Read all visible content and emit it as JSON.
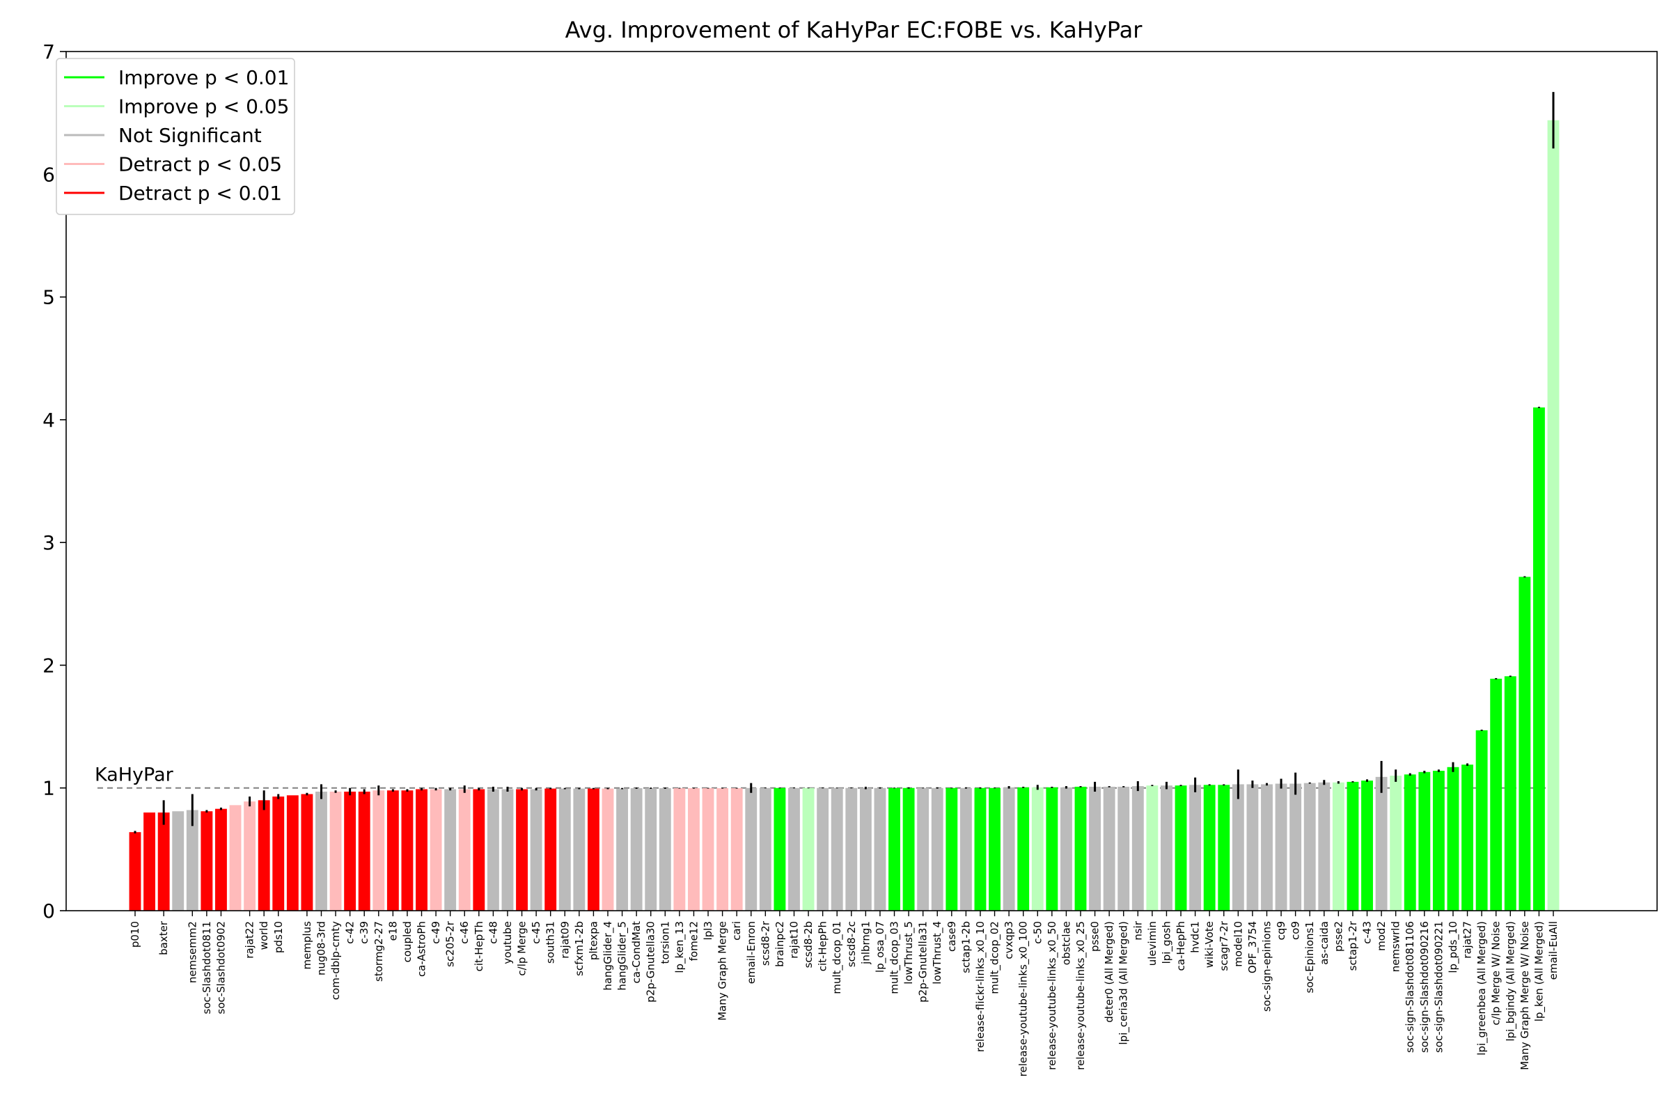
{
  "chart_data": {
    "type": "bar",
    "title": "Avg. Improvement of KaHyPar EC:FOBE vs. KaHyPar",
    "xlabel": "",
    "ylabel": "",
    "ylim": [
      0,
      7
    ],
    "yticks": [
      0,
      1,
      2,
      3,
      4,
      5,
      6,
      7
    ],
    "reference_line": {
      "value": 1,
      "label": "KaHyPar",
      "style": "dashed"
    },
    "grid": false,
    "legend_position": "top-left",
    "colors": {
      "improve_01": "#00ff00",
      "improve_05": "#bbffbb",
      "not_significant": "#bbbbbb",
      "detract_05": "#ffbbbb",
      "detract_01": "#ff0000",
      "reference": "#808080",
      "error_bar": "#000000"
    },
    "legend": [
      {
        "key": "improve_01",
        "label": "Improve p < 0.01"
      },
      {
        "key": "improve_05",
        "label": "Improve p < 0.05"
      },
      {
        "key": "not_significant",
        "label": "Not Significant"
      },
      {
        "key": "detract_05",
        "label": "Detract p < 0.05"
      },
      {
        "key": "detract_01",
        "label": "Detract p < 0.01"
      }
    ],
    "bars": [
      {
        "category": "p010",
        "value": 0.64,
        "err": 0.01,
        "significance": "detract_01"
      },
      {
        "category": "",
        "value": 0.8,
        "err": 0.0,
        "significance": "detract_01"
      },
      {
        "category": "baxter",
        "value": 0.8,
        "err": 0.1,
        "significance": "detract_01"
      },
      {
        "category": "",
        "value": 0.81,
        "err": 0.0,
        "significance": "not_significant"
      },
      {
        "category": "nemsemm2",
        "value": 0.82,
        "err": 0.13,
        "significance": "not_significant"
      },
      {
        "category": "soc-Slashdot0811",
        "value": 0.81,
        "err": 0.01,
        "significance": "detract_01"
      },
      {
        "category": "soc-Slashdot0902",
        "value": 0.83,
        "err": 0.01,
        "significance": "detract_01"
      },
      {
        "category": "",
        "value": 0.86,
        "err": 0.0,
        "significance": "detract_05"
      },
      {
        "category": "rajat22",
        "value": 0.89,
        "err": 0.04,
        "significance": "detract_05"
      },
      {
        "category": "world",
        "value": 0.9,
        "err": 0.08,
        "significance": "detract_01"
      },
      {
        "category": "pds10",
        "value": 0.93,
        "err": 0.02,
        "significance": "detract_01"
      },
      {
        "category": "",
        "value": 0.94,
        "err": 0.0,
        "significance": "detract_01"
      },
      {
        "category": "memplus",
        "value": 0.95,
        "err": 0.01,
        "significance": "detract_01"
      },
      {
        "category": "nug08-3rd",
        "value": 0.97,
        "err": 0.06,
        "significance": "not_significant"
      },
      {
        "category": "com-dblp-cmty",
        "value": 0.97,
        "err": 0.01,
        "significance": "detract_05"
      },
      {
        "category": "c-42",
        "value": 0.97,
        "err": 0.03,
        "significance": "detract_01"
      },
      {
        "category": "c-39",
        "value": 0.97,
        "err": 0.02,
        "significance": "detract_01"
      },
      {
        "category": "stormg2-27",
        "value": 0.98,
        "err": 0.04,
        "significance": "detract_05"
      },
      {
        "category": "e18",
        "value": 0.98,
        "err": 0.01,
        "significance": "detract_01"
      },
      {
        "category": "coupled",
        "value": 0.98,
        "err": 0.01,
        "significance": "detract_01"
      },
      {
        "category": "ca-AstroPh",
        "value": 0.99,
        "err": 0.01,
        "significance": "detract_01"
      },
      {
        "category": "c-49",
        "value": 0.99,
        "err": 0.01,
        "significance": "detract_05"
      },
      {
        "category": "sc205-2r",
        "value": 0.99,
        "err": 0.01,
        "significance": "not_significant"
      },
      {
        "category": "c-46",
        "value": 0.99,
        "err": 0.03,
        "significance": "detract_05"
      },
      {
        "category": "cit-HepTh",
        "value": 0.99,
        "err": 0.01,
        "significance": "detract_01"
      },
      {
        "category": "c-48",
        "value": 0.99,
        "err": 0.02,
        "significance": "not_significant"
      },
      {
        "category": "youtube",
        "value": 0.99,
        "err": 0.02,
        "significance": "not_significant"
      },
      {
        "category": "c/lp Merge",
        "value": 0.99,
        "err": 0.01,
        "significance": "detract_01"
      },
      {
        "category": "c-45",
        "value": 0.99,
        "err": 0.01,
        "significance": "not_significant"
      },
      {
        "category": "south31",
        "value": 0.995,
        "err": 0.005,
        "significance": "detract_01"
      },
      {
        "category": "rajat09",
        "value": 0.995,
        "err": 0.005,
        "significance": "not_significant"
      },
      {
        "category": "scfxm1-2b",
        "value": 0.995,
        "err": 0.005,
        "significance": "not_significant"
      },
      {
        "category": "pltexpa",
        "value": 0.995,
        "err": 0.005,
        "significance": "detract_01"
      },
      {
        "category": "hangGlider_4",
        "value": 0.995,
        "err": 0.005,
        "significance": "detract_05"
      },
      {
        "category": "hangGlider_5",
        "value": 0.995,
        "err": 0.005,
        "significance": "not_significant"
      },
      {
        "category": "ca-CondMat",
        "value": 0.998,
        "err": 0.005,
        "significance": "not_significant"
      },
      {
        "category": "p2p-Gnutella30",
        "value": 0.998,
        "err": 0.005,
        "significance": "not_significant"
      },
      {
        "category": "torsion1",
        "value": 0.998,
        "err": 0.005,
        "significance": "not_significant"
      },
      {
        "category": "lp_ken_13",
        "value": 0.998,
        "err": 0.003,
        "significance": "detract_05"
      },
      {
        "category": "fome12",
        "value": 0.998,
        "err": 0.003,
        "significance": "detract_05"
      },
      {
        "category": "lpl3",
        "value": 0.998,
        "err": 0.003,
        "significance": "detract_05"
      },
      {
        "category": "Many Graph Merge",
        "value": 0.998,
        "err": 0.003,
        "significance": "detract_05"
      },
      {
        "category": "cari",
        "value": 0.998,
        "err": 0.003,
        "significance": "detract_05"
      },
      {
        "category": "email-Enron",
        "value": 1.0,
        "err": 0.04,
        "significance": "not_significant"
      },
      {
        "category": "scsd8-2r",
        "value": 1.0,
        "err": 0.003,
        "significance": "not_significant"
      },
      {
        "category": "brainpc2",
        "value": 1.0,
        "err": 0.003,
        "significance": "improve_01"
      },
      {
        "category": "rajat10",
        "value": 1.0,
        "err": 0.003,
        "significance": "not_significant"
      },
      {
        "category": "scsd8-2b",
        "value": 1.0,
        "err": 0.003,
        "significance": "improve_05"
      },
      {
        "category": "cit-HepPh",
        "value": 1.0,
        "err": 0.003,
        "significance": "not_significant"
      },
      {
        "category": "mult_dcop_01",
        "value": 1.0,
        "err": 0.003,
        "significance": "not_significant"
      },
      {
        "category": "scsd8-2c",
        "value": 1.0,
        "err": 0.003,
        "significance": "not_significant"
      },
      {
        "category": "jnlbrng1",
        "value": 1.0,
        "err": 0.01,
        "significance": "not_significant"
      },
      {
        "category": "lp_osa_07",
        "value": 1.0,
        "err": 0.005,
        "significance": "not_significant"
      },
      {
        "category": "mult_dcop_03",
        "value": 1.0,
        "err": 0.003,
        "significance": "improve_01"
      },
      {
        "category": "lowThrust_5",
        "value": 1.0,
        "err": 0.005,
        "significance": "improve_01"
      },
      {
        "category": "p2p-Gnutella31",
        "value": 1.0,
        "err": 0.003,
        "significance": "not_significant"
      },
      {
        "category": "lowThrust_4",
        "value": 1.0,
        "err": 0.005,
        "significance": "not_significant"
      },
      {
        "category": "case9",
        "value": 1.0,
        "err": 0.003,
        "significance": "improve_01"
      },
      {
        "category": "sctap1-2b",
        "value": 1.0,
        "err": 0.005,
        "significance": "not_significant"
      },
      {
        "category": "release-flickr-links_x0_10",
        "value": 1.0,
        "err": 0.005,
        "significance": "improve_01"
      },
      {
        "category": "mult_dcop_02",
        "value": 1.0,
        "err": 0.003,
        "significance": "improve_01"
      },
      {
        "category": "cvxqp3",
        "value": 1.005,
        "err": 0.01,
        "significance": "not_significant"
      },
      {
        "category": "release-youtube-links_x0_100",
        "value": 1.005,
        "err": 0.005,
        "significance": "improve_01"
      },
      {
        "category": "c-50",
        "value": 1.005,
        "err": 0.02,
        "significance": "improve_05"
      },
      {
        "category": "release-youtube-links_x0_50",
        "value": 1.005,
        "err": 0.005,
        "significance": "improve_01"
      },
      {
        "category": "obstclae",
        "value": 1.005,
        "err": 0.01,
        "significance": "not_significant"
      },
      {
        "category": "release-youtube-links_x0_25",
        "value": 1.01,
        "err": 0.005,
        "significance": "improve_01"
      },
      {
        "category": "psse0",
        "value": 1.01,
        "err": 0.04,
        "significance": "not_significant"
      },
      {
        "category": "deter0 (All Merged)",
        "value": 1.01,
        "err": 0.005,
        "significance": "not_significant"
      },
      {
        "category": "lpi_ceria3d (All Merged)",
        "value": 1.01,
        "err": 0.005,
        "significance": "not_significant"
      },
      {
        "category": "nsir",
        "value": 1.015,
        "err": 0.04,
        "significance": "not_significant"
      },
      {
        "category": "ulevimin",
        "value": 1.02,
        "err": 0.005,
        "significance": "improve_05"
      },
      {
        "category": "lpi_gosh",
        "value": 1.02,
        "err": 0.03,
        "significance": "not_significant"
      },
      {
        "category": "ca-HepPh",
        "value": 1.02,
        "err": 0.005,
        "significance": "improve_01"
      },
      {
        "category": "hvdc1",
        "value": 1.025,
        "err": 0.06,
        "significance": "not_significant"
      },
      {
        "category": "wiki-Vote",
        "value": 1.025,
        "err": 0.005,
        "significance": "improve_01"
      },
      {
        "category": "scagr7-2r",
        "value": 1.025,
        "err": 0.005,
        "significance": "improve_01"
      },
      {
        "category": "model10",
        "value": 1.03,
        "err": 0.12,
        "significance": "not_significant"
      },
      {
        "category": "OPF_3754",
        "value": 1.03,
        "err": 0.03,
        "significance": "not_significant"
      },
      {
        "category": "soc-sign-epinions",
        "value": 1.03,
        "err": 0.01,
        "significance": "not_significant"
      },
      {
        "category": "cq9",
        "value": 1.035,
        "err": 0.04,
        "significance": "not_significant"
      },
      {
        "category": "co9",
        "value": 1.035,
        "err": 0.09,
        "significance": "not_significant"
      },
      {
        "category": "soc-Epinions1",
        "value": 1.04,
        "err": 0.005,
        "significance": "not_significant"
      },
      {
        "category": "as-caida",
        "value": 1.045,
        "err": 0.02,
        "significance": "not_significant"
      },
      {
        "category": "psse2",
        "value": 1.045,
        "err": 0.01,
        "significance": "improve_05"
      },
      {
        "category": "sctap1-2r",
        "value": 1.05,
        "err": 0.005,
        "significance": "improve_01"
      },
      {
        "category": "c-43",
        "value": 1.06,
        "err": 0.01,
        "significance": "improve_01"
      },
      {
        "category": "mod2",
        "value": 1.09,
        "err": 0.13,
        "significance": "not_significant"
      },
      {
        "category": "nemswrld",
        "value": 1.1,
        "err": 0.05,
        "significance": "improve_05"
      },
      {
        "category": "soc-sign-Slashdot081106",
        "value": 1.11,
        "err": 0.01,
        "significance": "improve_01"
      },
      {
        "category": "soc-sign-Slashdot090216",
        "value": 1.13,
        "err": 0.01,
        "significance": "improve_01"
      },
      {
        "category": "soc-sign-Slashdot090221",
        "value": 1.14,
        "err": 0.01,
        "significance": "improve_01"
      },
      {
        "category": "lp_pds_10",
        "value": 1.17,
        "err": 0.04,
        "significance": "improve_01"
      },
      {
        "category": "rajat27",
        "value": 1.19,
        "err": 0.01,
        "significance": "improve_01"
      },
      {
        "category": "lpi_greenbea (All Merged)",
        "value": 1.47,
        "err": 0.005,
        "significance": "improve_01"
      },
      {
        "category": "c/lp Merge W/ Noise",
        "value": 1.89,
        "err": 0.005,
        "significance": "improve_01"
      },
      {
        "category": "lpi_bgindy (All Merged)",
        "value": 1.91,
        "err": 0.005,
        "significance": "improve_01"
      },
      {
        "category": "Many Graph Merge W/ Noise",
        "value": 2.72,
        "err": 0.005,
        "significance": "improve_01"
      },
      {
        "category": "lp_ken (All Merged)",
        "value": 4.1,
        "err": 0.005,
        "significance": "improve_01"
      },
      {
        "category": "email-EuAll",
        "value": 6.44,
        "err": 0.23,
        "significance": "improve_05"
      }
    ]
  }
}
